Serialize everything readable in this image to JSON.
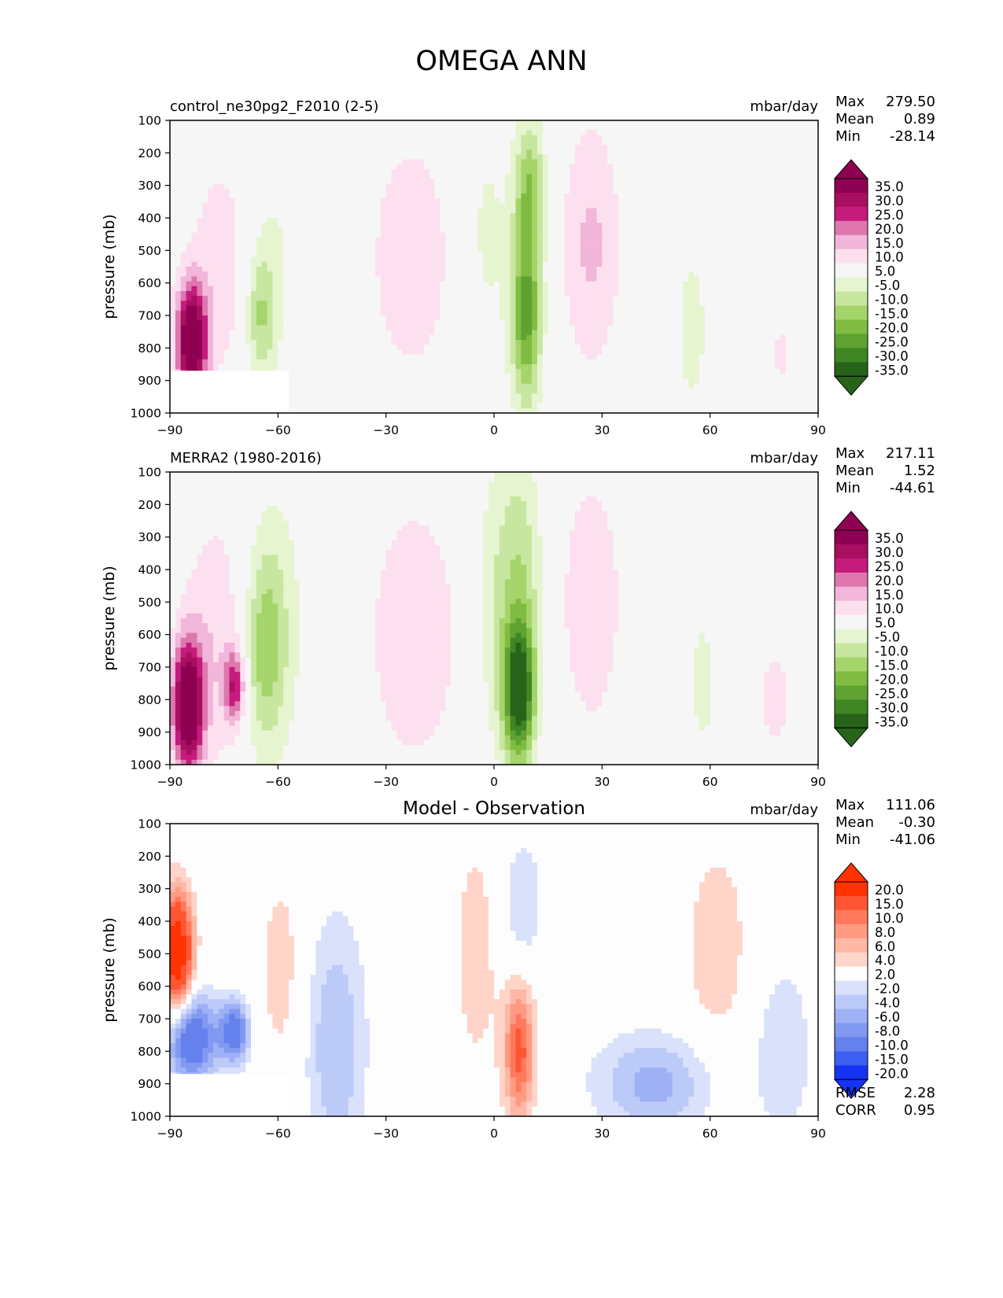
{
  "figure": {
    "title": "OMEGA ANN"
  },
  "chart_data": [
    {
      "type": "heatmap",
      "panel": "test",
      "title_left": "control_ne30pg2_F2010 (2-5)",
      "title_center": "",
      "units": "mbar/day",
      "ylabel": "pressure (mb)",
      "xlabel": "",
      "xlim": [
        -90,
        90
      ],
      "ylim": [
        1000,
        100
      ],
      "y_inverted": true,
      "xticks": [
        "−90",
        "−60",
        "−30",
        "0",
        "30",
        "60",
        "90"
      ],
      "xtick_values": [
        -90,
        -60,
        -30,
        0,
        30,
        60,
        90
      ],
      "yticks": [
        "100",
        "200",
        "300",
        "400",
        "500",
        "600",
        "700",
        "800",
        "900",
        "1000"
      ],
      "ytick_values": [
        100,
        200,
        300,
        400,
        500,
        600,
        700,
        800,
        900,
        1000
      ],
      "stats": [
        {
          "label": "Max",
          "value": "279.50"
        },
        {
          "label": "Mean",
          "value": "0.89"
        },
        {
          "label": "Min",
          "value": "-28.14"
        }
      ],
      "colorbar": {
        "extend": "both",
        "labels": [
          "35.0",
          "30.0",
          "25.0",
          "20.0",
          "15.0",
          "10.0",
          "5.0",
          "-5.0",
          "-10.0",
          "-15.0",
          "-20.0",
          "-25.0",
          "-30.0",
          "-35.0"
        ],
        "colors": [
          "#8e0152",
          "#a80f60",
          "#c51b7d",
          "#de77ae",
          "#f1b6da",
          "#fde0ef",
          "#f6f6f6",
          "#e6f5d0",
          "#c7e7a0",
          "#a5d56a",
          "#7fbc41",
          "#5fa232",
          "#3f8624",
          "#276419"
        ]
      },
      "fields": [
        {
          "x": -84,
          "p": 780,
          "sx": 3,
          "sp": 120,
          "value": 40
        },
        {
          "x": -75,
          "p": 550,
          "sx": 8,
          "sp": 280,
          "value": 8
        },
        {
          "x": -65,
          "p": 700,
          "sx": 3,
          "sp": 150,
          "value": -15
        },
        {
          "x": -61,
          "p": 500,
          "sx": 6,
          "sp": 300,
          "value": -6
        },
        {
          "x": -23,
          "p": 520,
          "sx": 8,
          "sp": 260,
          "value": 10
        },
        {
          "x": -2,
          "p": 450,
          "sx": 5,
          "sp": 300,
          "value": -6
        },
        {
          "x": 10,
          "p": 300,
          "sx": 3,
          "sp": 150,
          "value": -18
        },
        {
          "x": 9,
          "p": 700,
          "sx": 3,
          "sp": 200,
          "value": -27
        },
        {
          "x": 27,
          "p": 480,
          "sx": 6,
          "sp": 280,
          "value": 11
        },
        {
          "x": 55,
          "p": 750,
          "sx": 5,
          "sp": 300,
          "value": -6
        },
        {
          "x": 80,
          "p": 820,
          "sx": 2,
          "sp": 80,
          "value": 7
        }
      ],
      "mask": {
        "x": [
          -90,
          -57
        ],
        "p": [
          870,
          1000
        ]
      }
    },
    {
      "type": "heatmap",
      "panel": "reference",
      "title_left": "MERRA2 (1980-2016)",
      "title_center": "",
      "units": "mbar/day",
      "ylabel": "pressure (mb)",
      "xlabel": "",
      "xlim": [
        -90,
        90
      ],
      "ylim": [
        1000,
        100
      ],
      "y_inverted": true,
      "xticks": [
        "−90",
        "−60",
        "−30",
        "0",
        "30",
        "60",
        "90"
      ],
      "xtick_values": [
        -90,
        -60,
        -30,
        0,
        30,
        60,
        90
      ],
      "yticks": [
        "100",
        "200",
        "300",
        "400",
        "500",
        "600",
        "700",
        "800",
        "900",
        "1000"
      ],
      "ytick_values": [
        100,
        200,
        300,
        400,
        500,
        600,
        700,
        800,
        900,
        1000
      ],
      "stats": [
        {
          "label": "Max",
          "value": "217.11"
        },
        {
          "label": "Mean",
          "value": "1.52"
        },
        {
          "label": "Min",
          "value": "-44.61"
        }
      ],
      "colorbar": {
        "extend": "both",
        "labels": [
          "35.0",
          "30.0",
          "25.0",
          "20.0",
          "15.0",
          "10.0",
          "5.0",
          "-5.0",
          "-10.0",
          "-15.0",
          "-20.0",
          "-25.0",
          "-30.0",
          "-35.0"
        ],
        "colors": [
          "#8e0152",
          "#a80f60",
          "#c51b7d",
          "#de77ae",
          "#f1b6da",
          "#fde0ef",
          "#f6f6f6",
          "#e6f5d0",
          "#c7e7a0",
          "#a5d56a",
          "#7fbc41",
          "#5fa232",
          "#3f8624",
          "#276419"
        ]
      },
      "fields": [
        {
          "x": -85,
          "p": 820,
          "sx": 3,
          "sp": 140,
          "value": 40
        },
        {
          "x": -77,
          "p": 620,
          "sx": 7,
          "sp": 300,
          "value": 9
        },
        {
          "x": -72,
          "p": 760,
          "sx": 2,
          "sp": 80,
          "value": 22
        },
        {
          "x": -64,
          "p": 650,
          "sx": 4,
          "sp": 220,
          "value": -15
        },
        {
          "x": -60,
          "p": 550,
          "sx": 6,
          "sp": 320,
          "value": -7
        },
        {
          "x": -22,
          "p": 600,
          "sx": 10,
          "sp": 320,
          "value": 9
        },
        {
          "x": 1,
          "p": 500,
          "sx": 5,
          "sp": 350,
          "value": -9
        },
        {
          "x": 7,
          "p": 780,
          "sx": 3,
          "sp": 150,
          "value": -40
        },
        {
          "x": 8,
          "p": 400,
          "sx": 4,
          "sp": 250,
          "value": -11
        },
        {
          "x": 27,
          "p": 500,
          "sx": 6,
          "sp": 280,
          "value": 10
        },
        {
          "x": 58,
          "p": 750,
          "sx": 4,
          "sp": 250,
          "value": -6
        },
        {
          "x": 78,
          "p": 800,
          "sx": 5,
          "sp": 200,
          "value": 6
        }
      ],
      "mask": null
    },
    {
      "type": "heatmap",
      "panel": "difference",
      "title_left": "",
      "title_center": "Model - Observation",
      "units": "mbar/day",
      "ylabel": "pressure (mb)",
      "xlabel": "",
      "xlim": [
        -90,
        90
      ],
      "ylim": [
        1000,
        100
      ],
      "y_inverted": true,
      "xticks": [
        "−90",
        "−60",
        "−30",
        "0",
        "30",
        "60",
        "90"
      ],
      "xtick_values": [
        -90,
        -60,
        -30,
        0,
        30,
        60,
        90
      ],
      "yticks": [
        "100",
        "200",
        "300",
        "400",
        "500",
        "600",
        "700",
        "800",
        "900",
        "1000"
      ],
      "ytick_values": [
        100,
        200,
        300,
        400,
        500,
        600,
        700,
        800,
        900,
        1000
      ],
      "stats": [
        {
          "label": "Max",
          "value": "111.06"
        },
        {
          "label": "Mean",
          "value": "-0.30"
        },
        {
          "label": "Min",
          "value": "-41.06"
        }
      ],
      "metrics": [
        {
          "label": "RMSE",
          "value": "2.28"
        },
        {
          "label": "CORR",
          "value": "0.95"
        }
      ],
      "colorbar": {
        "extend": "both",
        "labels": [
          "20.0",
          "15.0",
          "10.0",
          "8.0",
          "6.0",
          "4.0",
          "2.0",
          "-2.0",
          "-4.0",
          "-6.0",
          "-8.0",
          "-10.0",
          "-15.0",
          "-20.0"
        ],
        "colors": [
          "#ff3300",
          "#ff5533",
          "#ff7a5c",
          "#ff9a82",
          "#ffb7a6",
          "#ffd5c9",
          "#fdfdfd",
          "#d9e1fb",
          "#bccaf8",
          "#9fb1f5",
          "#8199f1",
          "#6481ee",
          "#3d5ff1",
          "#1533f5"
        ]
      },
      "fields": [
        {
          "x": -88,
          "p": 500,
          "sx": 3,
          "sp": 130,
          "value": 20
        },
        {
          "x": -84,
          "p": 760,
          "sx": 5,
          "sp": 100,
          "value": -14
        },
        {
          "x": -72,
          "p": 740,
          "sx": 3,
          "sp": 70,
          "value": -12
        },
        {
          "x": -59,
          "p": 550,
          "sx": 5,
          "sp": 250,
          "value": 3
        },
        {
          "x": -44,
          "p": 780,
          "sx": 6,
          "sp": 280,
          "value": -6
        },
        {
          "x": -5,
          "p": 500,
          "sx": 5,
          "sp": 300,
          "value": 3
        },
        {
          "x": 7,
          "p": 800,
          "sx": 3,
          "sp": 150,
          "value": 11
        },
        {
          "x": 8,
          "p": 350,
          "sx": 4,
          "sp": 150,
          "value": -4
        },
        {
          "x": 45,
          "p": 900,
          "sx": 12,
          "sp": 110,
          "value": -7
        },
        {
          "x": 62,
          "p": 500,
          "sx": 8,
          "sp": 300,
          "value": 3
        },
        {
          "x": 80,
          "p": 800,
          "sx": 6,
          "sp": 200,
          "value": -4
        }
      ],
      "mask": {
        "x": [
          -90,
          -57
        ],
        "p": [
          870,
          1000
        ]
      }
    }
  ]
}
